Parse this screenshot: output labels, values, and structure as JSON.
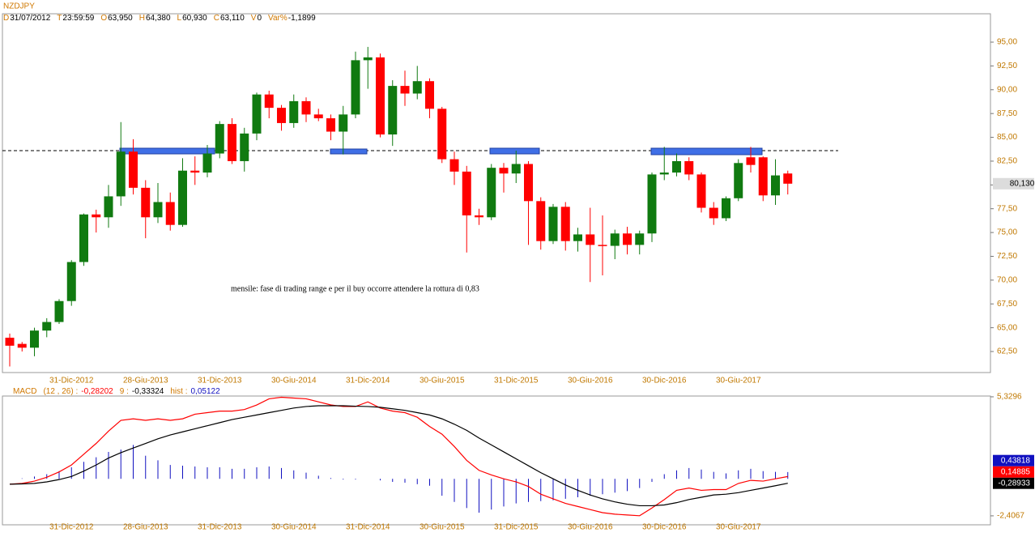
{
  "header": {
    "symbol": "NZDJPY",
    "fields": [
      {
        "key": "D",
        "value": "31/07/2012"
      },
      {
        "key": "T",
        "value": "23:59:59"
      },
      {
        "key": "O",
        "value": "63,950"
      },
      {
        "key": "H",
        "value": "64,380"
      },
      {
        "key": "L",
        "value": "60,930"
      },
      {
        "key": "C",
        "value": "63,110"
      },
      {
        "key": "V",
        "value": "0"
      },
      {
        "key": "Var%",
        "value": "-1,1899"
      }
    ]
  },
  "chart_data": [
    {
      "type": "candlestick",
      "categories": [
        null,
        null,
        null,
        null,
        null,
        "31-Dic-2012",
        null,
        null,
        null,
        null,
        null,
        "28-Giu-2013",
        null,
        null,
        null,
        null,
        null,
        "31-Dic-2013",
        null,
        null,
        null,
        null,
        null,
        "30-Giu-2014",
        null,
        null,
        null,
        null,
        null,
        "31-Dic-2014",
        null,
        null,
        null,
        null,
        null,
        "30-Giu-2015",
        null,
        null,
        null,
        null,
        null,
        "31-Dic-2015",
        null,
        null,
        null,
        null,
        null,
        "30-Giu-2016",
        null,
        null,
        null,
        null,
        null,
        "30-Dic-2016",
        null,
        null,
        null,
        null,
        null,
        "30-Giu-2017",
        null,
        null,
        null,
        null
      ],
      "open": [
        63.95,
        63.3,
        62.9,
        64.7,
        65.6,
        67.8,
        71.9,
        76.9,
        76.6,
        78.8,
        83.5,
        79.7,
        76.6,
        78.2,
        75.8,
        81.5,
        81.3,
        83.3,
        86.4,
        82.5,
        85.4,
        89.5,
        88.1,
        86.5,
        88.8,
        87.4,
        87.0,
        85.6,
        87.4,
        93.1,
        93.4,
        85.3,
        90.4,
        89.6,
        90.9,
        88.0,
        82.7,
        81.4,
        76.8,
        76.6,
        81.8,
        81.2,
        82.2,
        78.3,
        74.1,
        77.7,
        74.1,
        74.8,
        73.7,
        73.6,
        74.9,
        73.7,
        74.9,
        81.1,
        81.3,
        82.5,
        81.1,
        77.6,
        76.5,
        78.6,
        82.9,
        82.9,
        78.9,
        81.2
      ],
      "high": [
        64.38,
        63.5,
        65.0,
        66.0,
        68.0,
        72.1,
        77.0,
        77.4,
        80.0,
        86.6,
        84.8,
        80.5,
        80.2,
        79.2,
        82.8,
        83.0,
        84.2,
        86.7,
        87.0,
        86.0,
        89.7,
        89.9,
        88.4,
        89.5,
        89.2,
        88.0,
        87.4,
        88.3,
        94.0,
        94.5,
        93.8,
        91.0,
        92.0,
        92.5,
        91.2,
        88.2,
        83.5,
        82.0,
        77.5,
        82.2,
        82.3,
        83.6,
        82.5,
        78.7,
        78.0,
        78.2,
        75.5,
        77.6,
        76.8,
        75.3,
        75.6,
        75.2,
        81.3,
        84.0,
        83.3,
        82.9,
        81.3,
        78.2,
        78.8,
        82.7,
        84.0,
        83.0,
        82.7,
        81.5
      ],
      "low": [
        60.93,
        62.5,
        62.0,
        64.0,
        65.4,
        67.3,
        71.5,
        75.0,
        75.5,
        77.8,
        79.0,
        74.4,
        76.0,
        75.2,
        75.6,
        80.0,
        80.8,
        82.8,
        82.2,
        81.4,
        84.7,
        87.0,
        85.7,
        86.0,
        86.6,
        86.7,
        84.7,
        83.2,
        87.0,
        90.1,
        85.0,
        84.1,
        88.3,
        89.0,
        87.0,
        82.3,
        80.0,
        72.9,
        75.8,
        76.3,
        79.2,
        80.2,
        73.7,
        73.2,
        73.8,
        73.1,
        73.0,
        69.8,
        70.5,
        72.2,
        72.7,
        72.7,
        74.0,
        80.5,
        80.9,
        80.5,
        77.1,
        75.8,
        76.2,
        78.3,
        81.3,
        78.3,
        77.9,
        79.0
      ],
      "close": [
        63.11,
        62.9,
        64.7,
        65.6,
        67.8,
        71.9,
        76.9,
        76.6,
        78.8,
        83.5,
        79.7,
        76.6,
        78.2,
        75.8,
        81.5,
        81.3,
        83.3,
        86.4,
        82.5,
        85.4,
        89.5,
        88.1,
        86.5,
        88.8,
        87.4,
        87.0,
        85.6,
        87.4,
        93.1,
        93.4,
        85.3,
        90.4,
        89.6,
        90.9,
        88.0,
        82.7,
        81.4,
        76.8,
        76.6,
        81.8,
        81.2,
        82.2,
        78.3,
        74.1,
        77.7,
        74.1,
        74.8,
        73.7,
        73.6,
        74.9,
        73.7,
        74.9,
        81.1,
        81.3,
        82.5,
        81.1,
        77.6,
        76.5,
        78.6,
        82.3,
        82.1,
        78.9,
        81.0,
        80.13
      ],
      "up_color": "#107a10",
      "down_color": "#ff0000",
      "last_label": "80,130",
      "annotation": "mensile: fase di trading range e per il buy occorre attendere la rottura di 0,83",
      "ylim": [
        60.29,
        97.98
      ],
      "yticks": [
        {
          "value": 62.5,
          "label": "62,50"
        },
        {
          "value": 65,
          "label": "65,00"
        },
        {
          "value": 67.5,
          "label": "67,50"
        },
        {
          "value": 70,
          "label": "70,00"
        },
        {
          "value": 72.5,
          "label": "72,50"
        },
        {
          "value": 75,
          "label": "75,00"
        },
        {
          "value": 77.5,
          "label": "77,50"
        },
        {
          "value": 80,
          "label": "80,00"
        },
        {
          "value": 82.5,
          "label": "82,50"
        },
        {
          "value": 85,
          "label": "85,00"
        },
        {
          "value": 87.5,
          "label": "87,50"
        },
        {
          "value": 90,
          "label": "90,00"
        },
        {
          "value": 92.5,
          "label": "92,50"
        },
        {
          "value": 95,
          "label": "95,00"
        }
      ]
    },
    {
      "type": "macd",
      "title": "MACD",
      "params": "(12 , 26) :",
      "macd_value": "-0,28202",
      "signal_label": "9 :",
      "signal_value": "-0,33324",
      "hist_label": "hist :",
      "hist_value": "0,05122",
      "categories": [
        null,
        null,
        null,
        null,
        null,
        "31-Dic-2012",
        null,
        null,
        null,
        null,
        null,
        "28-Giu-2013",
        null,
        null,
        null,
        null,
        null,
        "31-Dic-2013",
        null,
        null,
        null,
        null,
        null,
        "30-Giu-2014",
        null,
        null,
        null,
        null,
        null,
        "31-Dic-2014",
        null,
        null,
        null,
        null,
        null,
        "30-Giu-2015",
        null,
        null,
        null,
        null,
        null,
        "31-Dic-2015",
        null,
        null,
        null,
        null,
        null,
        "30-Giu-2016",
        null,
        null,
        null,
        null,
        null,
        "30-Dic-2016",
        null,
        null,
        null,
        null,
        null,
        "30-Giu-2017",
        null,
        null,
        null,
        null
      ],
      "series": [
        {
          "color": "#ff0000",
          "last_label": "0,14885",
          "values": [
            -0.35,
            -0.3,
            -0.15,
            0.1,
            0.45,
            0.9,
            1.6,
            2.3,
            3.1,
            3.8,
            3.9,
            3.8,
            3.9,
            3.8,
            3.9,
            4.2,
            4.3,
            4.4,
            4.4,
            4.5,
            4.8,
            5.2,
            5.3,
            5.25,
            5.2,
            5.0,
            4.8,
            4.7,
            4.7,
            5.0,
            4.6,
            4.4,
            4.3,
            4.0,
            3.4,
            2.9,
            2.1,
            1.2,
            0.55,
            0.25,
            0.0,
            -0.2,
            -0.5,
            -1.0,
            -1.3,
            -1.6,
            -1.8,
            -2.0,
            -2.2,
            -2.3,
            -2.35,
            -2.4,
            -1.9,
            -1.35,
            -0.75,
            -0.6,
            -0.75,
            -0.7,
            -0.7,
            -0.3,
            -0.1,
            -0.15,
            0.0,
            0.14885
          ]
        },
        {
          "color": "#000000",
          "last_label": "-0,28933",
          "values": [
            -0.35,
            -0.33,
            -0.3,
            -0.2,
            -0.05,
            0.15,
            0.5,
            0.9,
            1.35,
            1.7,
            2.0,
            2.3,
            2.6,
            2.85,
            3.05,
            3.25,
            3.45,
            3.65,
            3.85,
            4.0,
            4.15,
            4.3,
            4.45,
            4.6,
            4.7,
            4.75,
            4.75,
            4.75,
            4.72,
            4.7,
            4.65,
            4.55,
            4.45,
            4.3,
            4.15,
            3.9,
            3.55,
            3.15,
            2.65,
            2.2,
            1.75,
            1.3,
            0.85,
            0.4,
            0.0,
            -0.4,
            -0.75,
            -1.05,
            -1.3,
            -1.5,
            -1.65,
            -1.75,
            -1.75,
            -1.7,
            -1.55,
            -1.35,
            -1.2,
            -1.05,
            -1.0,
            -0.9,
            -0.75,
            -0.6,
            -0.45,
            -0.28933
          ]
        }
      ],
      "histogram": {
        "color": "#1010c0",
        "last_label": "0,43818",
        "values": [
          0.0,
          0.03,
          0.15,
          0.3,
          0.5,
          0.75,
          1.1,
          1.4,
          1.75,
          1.9,
          2.2,
          1.5,
          1.2,
          0.9,
          0.85,
          0.8,
          0.75,
          0.75,
          0.65,
          0.65,
          0.75,
          0.8,
          0.7,
          0.55,
          0.4,
          0.2,
          0.05,
          -0.05,
          -0.05,
          0.0,
          -0.1,
          -0.2,
          -0.25,
          -0.35,
          -0.45,
          -1.1,
          -1.5,
          -1.9,
          -2.2,
          -2.0,
          -1.8,
          -1.6,
          -1.5,
          -1.45,
          -1.4,
          -1.3,
          -1.2,
          -1.1,
          -1.0,
          -0.9,
          -0.8,
          -0.6,
          -0.2,
          0.3,
          0.55,
          0.7,
          0.6,
          0.45,
          0.35,
          0.55,
          0.65,
          0.5,
          0.45,
          0.43818
        ]
      },
      "ylim": [
        -2.99,
        5.38
      ],
      "yticks": [
        {
          "value": 5.3296,
          "label": "5,3296"
        },
        {
          "value": -2.4067,
          "label": "-2,4067"
        }
      ]
    }
  ]
}
